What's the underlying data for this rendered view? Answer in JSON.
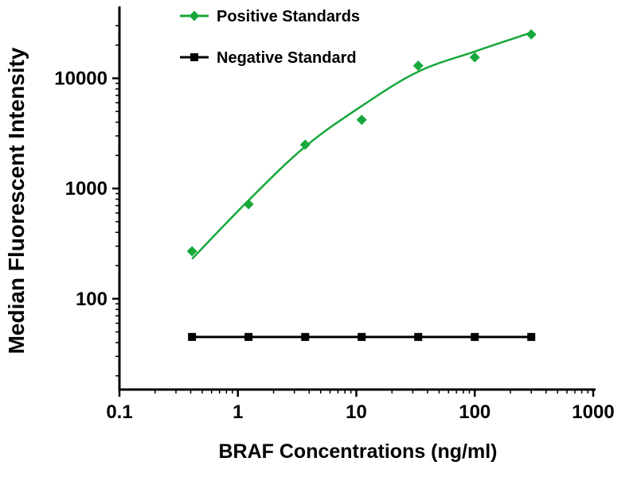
{
  "figure": {
    "background": "#ffffff"
  },
  "chart_data": {
    "type": "scatter",
    "title": "",
    "xlabel": "BRAF Concentrations (ng/ml)",
    "ylabel": "Median Fluorescent Intensity",
    "x_scale": "log",
    "y_scale": "log",
    "xlim": [
      0.1,
      1000
    ],
    "ylim": [
      15,
      40000
    ],
    "x_ticks": [
      0.1,
      1,
      10,
      100,
      1000
    ],
    "x_tick_labels": [
      "0.1",
      "1",
      "10",
      "100",
      "1000"
    ],
    "y_ticks": [
      100,
      1000,
      10000
    ],
    "y_tick_labels": [
      "100",
      "1000",
      "10000"
    ],
    "grid": false,
    "legend_position": "top-left-inside",
    "series": [
      {
        "name": "Positive Standards",
        "color": "#17a73b",
        "marker": "diamond",
        "x": [
          0.41,
          1.23,
          3.7,
          11.1,
          33.3,
          100,
          300
        ],
        "y": [
          270,
          720,
          2500,
          4200,
          13000,
          15500,
          25000
        ],
        "fit_curve": {
          "x": [
            0.41,
            1.23,
            3.7,
            11.1,
            33.3,
            100,
            300
          ],
          "y": [
            230,
            780,
            2400,
            5600,
            11500,
            17500,
            26000
          ]
        }
      },
      {
        "name": "Negative Standard",
        "color": "#000000",
        "marker": "square",
        "connect": true,
        "x": [
          0.41,
          1.23,
          3.7,
          11.1,
          33.3,
          100,
          300
        ],
        "y": [
          45,
          45,
          45,
          45,
          45,
          45,
          45
        ]
      }
    ]
  }
}
